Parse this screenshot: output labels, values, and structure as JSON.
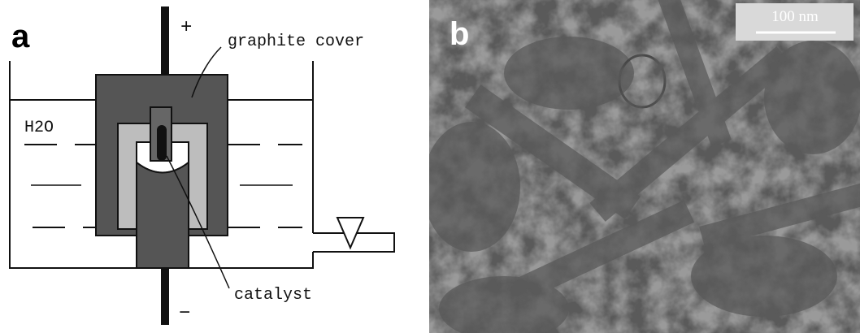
{
  "panel_a": {
    "label": "a",
    "plus": "+",
    "minus": "−",
    "cover_label": "graphite cover",
    "water_label": "H2O",
    "catalyst_label": "catalyst"
  },
  "panel_b": {
    "label": "b",
    "scale_bar": "100 nm"
  }
}
